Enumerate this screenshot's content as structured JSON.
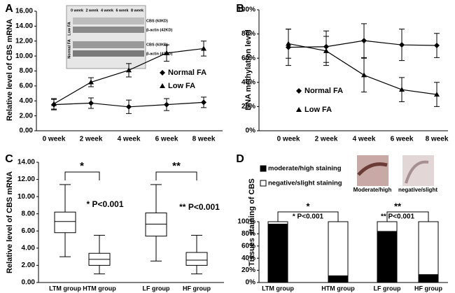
{
  "chart_data": [
    {
      "type": "line",
      "label": "A",
      "y_label": "Relative level of CBS mRNA",
      "categories": [
        "0 week",
        "2 week",
        "4 week",
        "6 week",
        "8 week"
      ],
      "series": [
        {
          "name": "Normal FA",
          "color": "#000000",
          "marker": "diamond",
          "values": [
            3.5,
            3.7,
            3.2,
            3.5,
            3.8
          ],
          "errors": [
            0.7,
            0.7,
            0.9,
            0.8,
            0.7
          ]
        },
        {
          "name": "Low FA",
          "color": "#000000",
          "marker": "triangle",
          "values": [
            3.6,
            6.5,
            8.1,
            10.4,
            11.0
          ],
          "errors": [
            0.7,
            0.6,
            0.9,
            1.1,
            1.0
          ]
        }
      ],
      "ylim": [
        0,
        16
      ],
      "yticks": [
        {
          "value": 0,
          "label": "0.00"
        },
        {
          "value": 2,
          "label": "2.00"
        },
        {
          "value": 4,
          "label": "4.00"
        },
        {
          "value": 6,
          "label": "6.00"
        },
        {
          "value": 8,
          "label": "8.00"
        },
        {
          "value": 10,
          "label": "10.00"
        },
        {
          "value": 12,
          "label": "12.00"
        },
        {
          "value": 14,
          "label": "14.00"
        },
        {
          "value": 16,
          "label": "16.00"
        }
      ],
      "inset": {
        "columns": [
          "0 week",
          "2 week",
          "4 week",
          "6 week",
          "8 week"
        ],
        "rows": [
          "CBS (63KD)",
          "β-actin (42KD)",
          "CBS (63KD)",
          "β-actin (42KD)"
        ],
        "groups": [
          "Low FA",
          "Normal FA"
        ]
      }
    },
    {
      "type": "line",
      "label": "B",
      "y_label": "DNA methylation level",
      "categories": [
        "0 week",
        "2 week",
        "4 week",
        "6 week",
        "8 week"
      ],
      "series": [
        {
          "name": "Normal FA",
          "color": "#000000",
          "marker": "diamond",
          "values": [
            69,
            69.5,
            74.5,
            71,
            70.5
          ],
          "errors": [
            15,
            13,
            14,
            13,
            10
          ]
        },
        {
          "name": "Low FA",
          "color": "#000000",
          "marker": "triangle",
          "values": [
            72,
            66,
            46,
            34,
            30
          ],
          "errors": [
            12,
            12,
            14,
            10,
            10
          ]
        }
      ],
      "ylim": [
        0,
        100
      ],
      "yticks": [
        {
          "value": 0,
          "label": "0%"
        },
        {
          "value": 20,
          "label": "20%"
        },
        {
          "value": 40,
          "label": "40%"
        },
        {
          "value": 60,
          "label": "60%"
        },
        {
          "value": 80,
          "label": "80%"
        },
        {
          "value": 100,
          "label": "100%"
        }
      ]
    },
    {
      "type": "box",
      "label": "C",
      "y_label": "Relative  level of CBS mRNA",
      "categories": [
        "LTM group",
        "HTM group",
        "LF group",
        "HF group"
      ],
      "min": [
        3.0,
        1.0,
        2.5,
        1.0
      ],
      "q1": [
        5.8,
        2.0,
        5.4,
        2.0
      ],
      "median": [
        7.1,
        2.7,
        6.8,
        2.6
      ],
      "q3": [
        8.2,
        3.4,
        8.1,
        3.5
      ],
      "max": [
        11.4,
        5.5,
        11.4,
        5.5
      ],
      "ylim": [
        0,
        14
      ],
      "yticks": [
        {
          "value": 0,
          "label": "0.00"
        },
        {
          "value": 2,
          "label": "2.00"
        },
        {
          "value": 4,
          "label": "4.00"
        },
        {
          "value": 6,
          "label": "6.00"
        },
        {
          "value": 8,
          "label": "8.00"
        },
        {
          "value": 10,
          "label": "10.00"
        },
        {
          "value": 12,
          "label": "12.00"
        },
        {
          "value": 14,
          "label": "14.00"
        }
      ],
      "annotations": [
        "*",
        "* P<0.001",
        "**",
        "** P<0.001"
      ]
    },
    {
      "type": "stacked_bar",
      "label": "D",
      "y_label": "Tissues staining of CBS",
      "categories": [
        "LTM group",
        "HTM group",
        "LF group",
        "HF group"
      ],
      "series": [
        {
          "name": "moderate/high staining",
          "color": "#000000",
          "values": [
            96,
            11,
            84,
            13
          ]
        },
        {
          "name": "negative/slight staining",
          "color": "#ffffff",
          "values": [
            4,
            89,
            16,
            87
          ]
        }
      ],
      "ylim": [
        0,
        100
      ],
      "yticks": [
        {
          "value": 0,
          "label": "0%"
        },
        {
          "value": 20,
          "label": "20%"
        },
        {
          "value": 40,
          "label": "40%"
        },
        {
          "value": 60,
          "label": "60%"
        },
        {
          "value": 80,
          "label": "80%"
        },
        {
          "value": 100,
          "label": "100%"
        }
      ],
      "annotations": [
        "*",
        "* P<0.001",
        "**",
        "** P<0.001"
      ],
      "image_captions": [
        "Moderate/high",
        "negative/slight"
      ]
    }
  ]
}
